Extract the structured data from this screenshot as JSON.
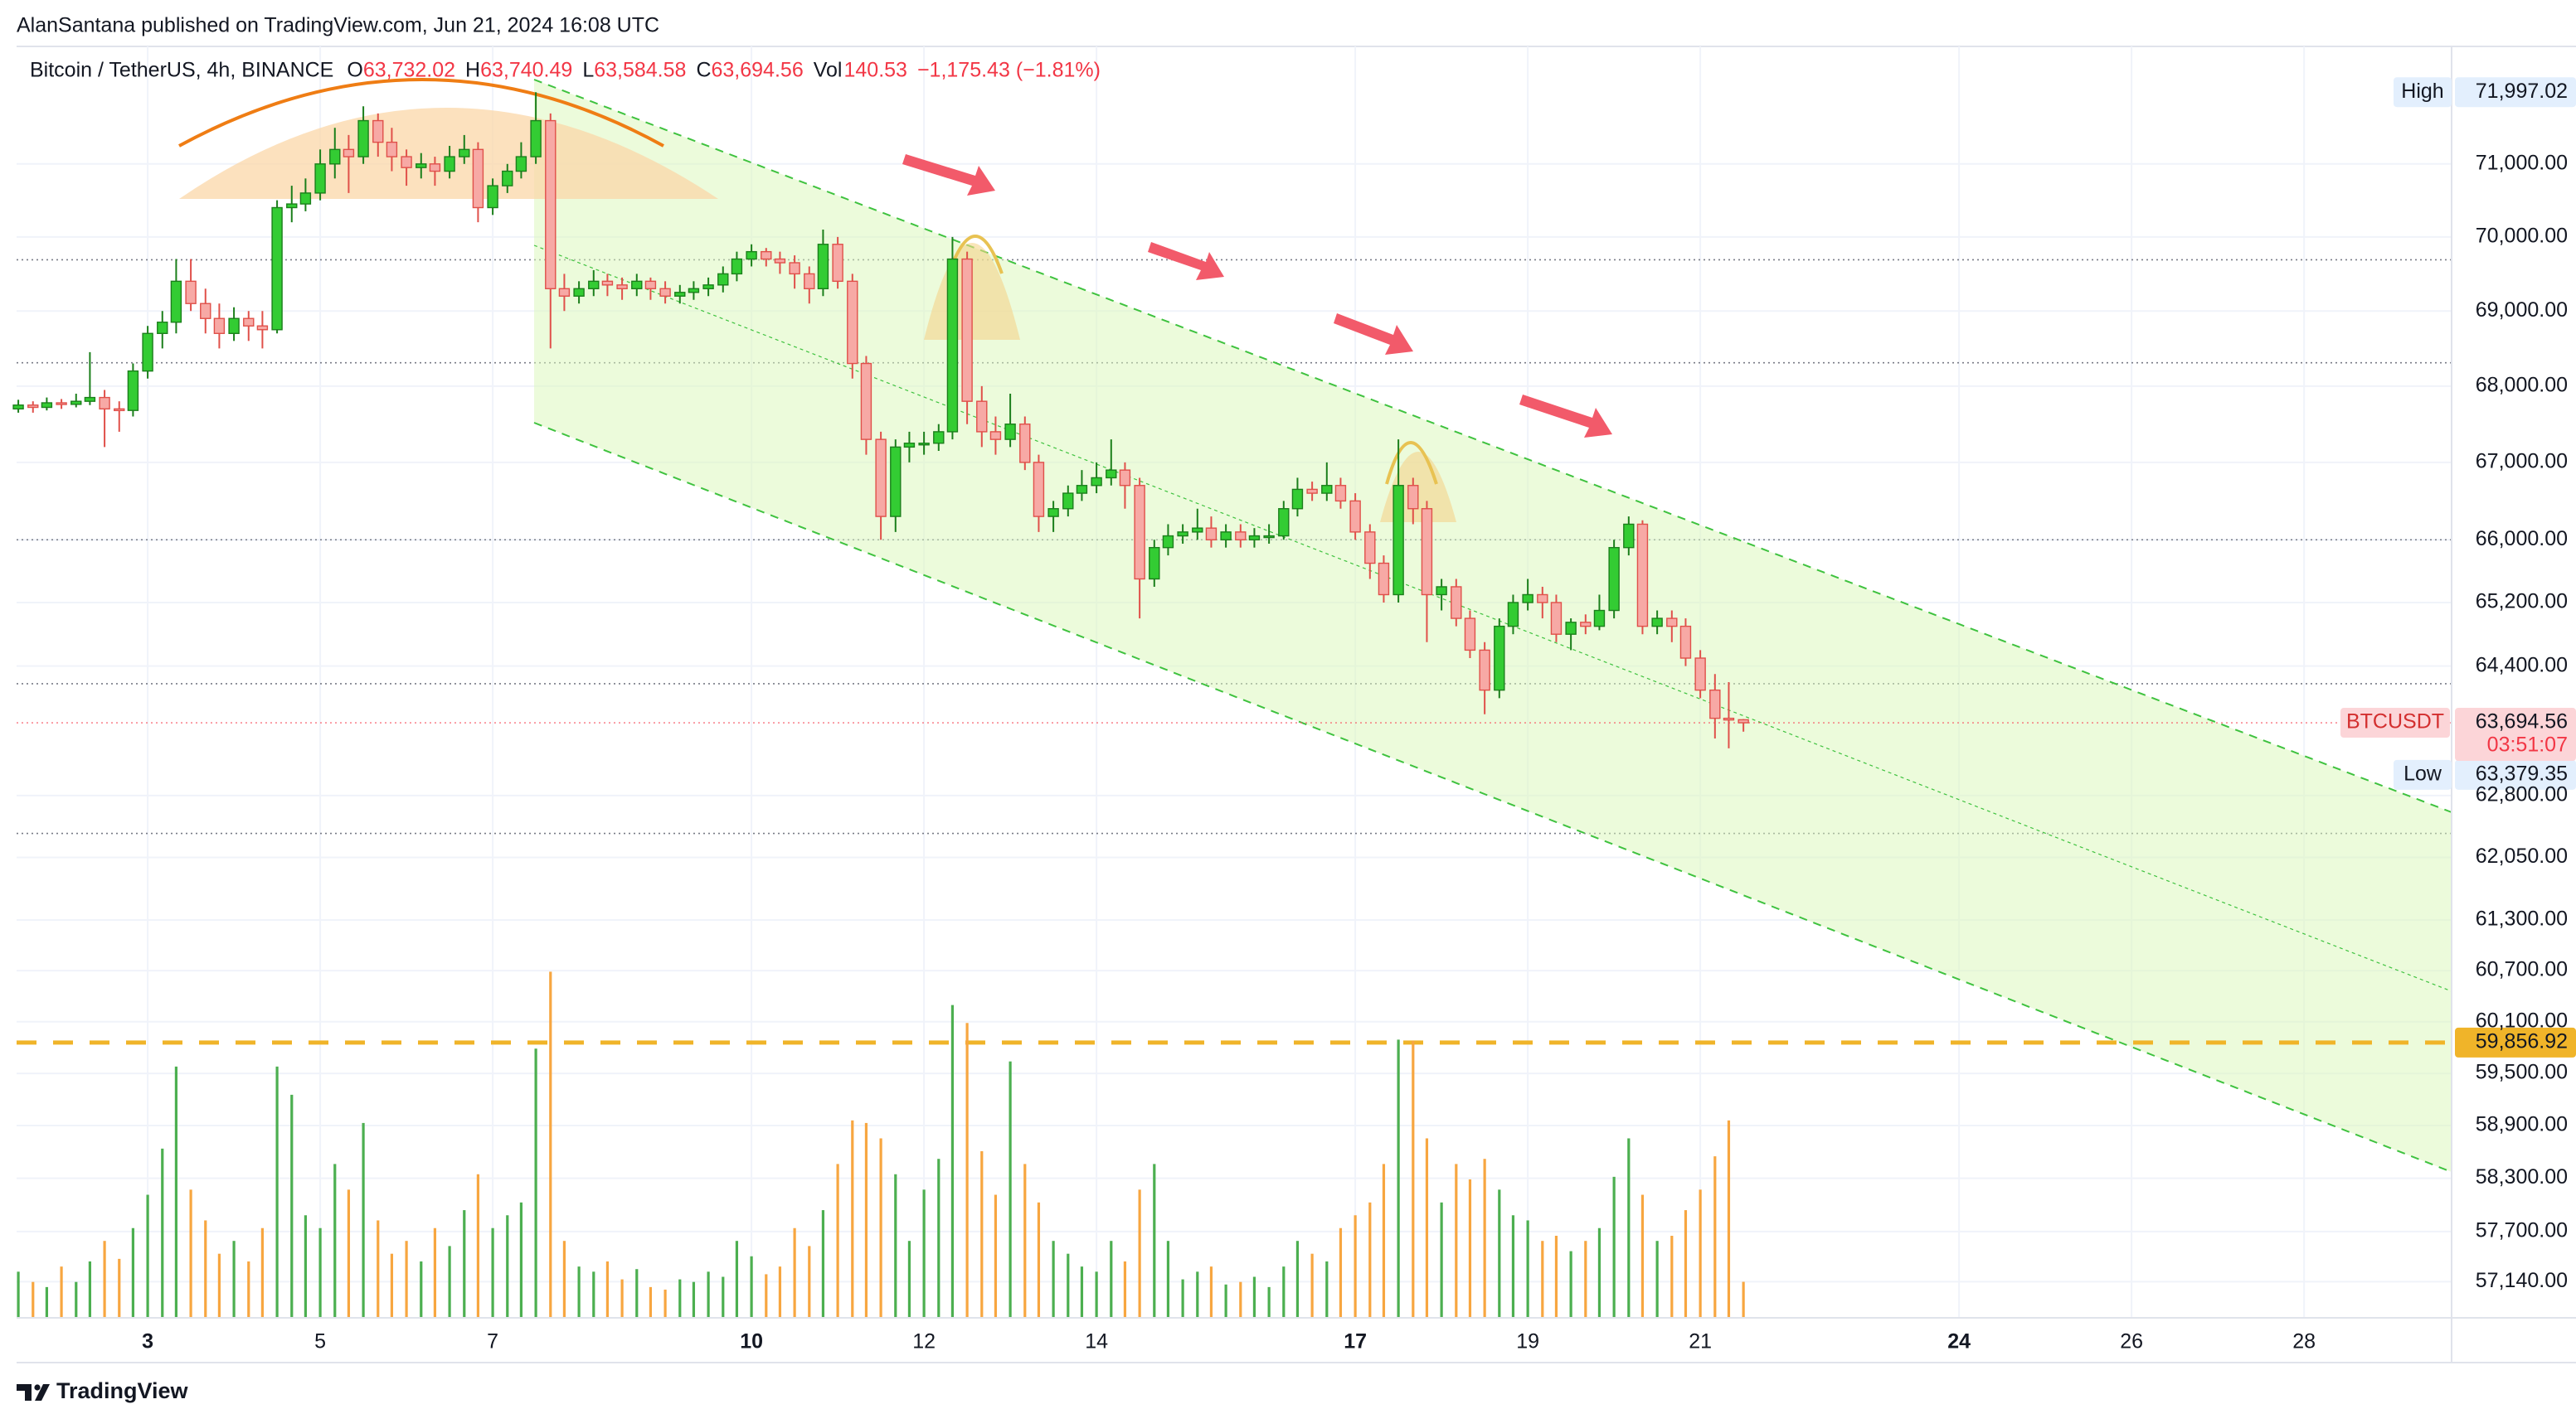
{
  "header": {
    "title": "AlanSantana published on TradingView.com, Jun 21, 2024 16:08 UTC"
  },
  "legend": {
    "symbol": "Bitcoin / TetherUS, 4h, BINANCE",
    "o_label": "O",
    "o": "63,732.02",
    "h_label": "H",
    "h": "63,740.49",
    "l_label": "L",
    "l": "63,584.58",
    "c_label": "C",
    "c": "63,694.56",
    "vol_label": "Vol",
    "vol": "140.53",
    "change": "−1,175.43 (−1.81%)"
  },
  "chart_data": {
    "type": "candlestick",
    "log_scale": true,
    "grid": true,
    "up_color": "#33cc33",
    "down_color": "#f7a9a5",
    "xlim": [
      1.48,
      29.71
    ],
    "xticks": [
      3,
      5,
      7,
      10,
      12,
      14,
      17,
      19,
      21,
      24,
      26,
      28
    ],
    "ylim": [
      56740,
      72640
    ],
    "yticks": [
      {
        "value": 71000,
        "label": "71,000.00"
      },
      {
        "value": 70000,
        "label": "70,000.00"
      },
      {
        "value": 69000,
        "label": "69,000.00"
      },
      {
        "value": 68000,
        "label": "68,000.00"
      },
      {
        "value": 67000,
        "label": "67,000.00"
      },
      {
        "value": 66000,
        "label": "66,000.00"
      },
      {
        "value": 65200,
        "label": "65,200.00"
      },
      {
        "value": 64400,
        "label": "64,400.00"
      },
      {
        "value": 62800,
        "label": "62,800.00"
      },
      {
        "value": 62050,
        "label": "62,050.00"
      },
      {
        "value": 61300,
        "label": "61,300.00"
      },
      {
        "value": 60700,
        "label": "60,700.00"
      },
      {
        "value": 60100,
        "label": "60,100.00"
      },
      {
        "value": 59500,
        "label": "59,500.00"
      },
      {
        "value": 58900,
        "label": "58,900.00"
      },
      {
        "value": 58300,
        "label": "58,300.00"
      },
      {
        "value": 57700,
        "label": "57,700.00"
      },
      {
        "value": 57140,
        "label": "57,140.00"
      }
    ],
    "volume_lim": [
      0,
      1500
    ],
    "x": [
      1.5,
      1.67,
      1.83,
      2,
      2.17,
      2.33,
      2.5,
      2.67,
      2.83,
      3,
      3.17,
      3.33,
      3.5,
      3.67,
      3.83,
      4,
      4.17,
      4.33,
      4.5,
      4.67,
      4.83,
      5,
      5.17,
      5.33,
      5.5,
      5.67,
      5.83,
      6,
      6.17,
      6.33,
      6.5,
      6.67,
      6.83,
      7,
      7.17,
      7.33,
      7.5,
      7.67,
      7.83,
      8,
      8.17,
      8.33,
      8.5,
      8.67,
      8.83,
      9,
      9.17,
      9.33,
      9.5,
      9.67,
      9.83,
      10,
      10.17,
      10.33,
      10.5,
      10.67,
      10.83,
      11,
      11.17,
      11.33,
      11.5,
      11.67,
      11.83,
      12,
      12.17,
      12.33,
      12.5,
      12.67,
      12.83,
      13,
      13.17,
      13.33,
      13.5,
      13.67,
      13.83,
      14,
      14.17,
      14.33,
      14.5,
      14.67,
      14.83,
      15,
      15.17,
      15.33,
      15.5,
      15.67,
      15.83,
      16,
      16.17,
      16.33,
      16.5,
      16.67,
      16.83,
      17,
      17.17,
      17.33,
      17.5,
      17.67,
      17.83,
      18,
      18.17,
      18.33,
      18.5,
      18.67,
      18.83,
      19,
      19.17,
      19.33,
      19.5,
      19.67,
      19.83,
      20,
      20.17,
      20.33,
      20.5,
      20.67,
      20.83,
      21,
      21.17,
      21.33,
      21.5
    ],
    "candles": [
      [
        67700,
        67820,
        67650,
        67750
      ],
      [
        67750,
        67800,
        67650,
        67720
      ],
      [
        67720,
        67850,
        67680,
        67780
      ],
      [
        67780,
        67830,
        67700,
        67760
      ],
      [
        67760,
        67900,
        67720,
        67800
      ],
      [
        67800,
        68450,
        67750,
        67850
      ],
      [
        67850,
        67950,
        67200,
        67700
      ],
      [
        67700,
        67800,
        67400,
        67680
      ],
      [
        67680,
        68300,
        67600,
        68200
      ],
      [
        68200,
        68800,
        68100,
        68700
      ],
      [
        68700,
        69000,
        68500,
        68850
      ],
      [
        68850,
        69700,
        68700,
        69400
      ],
      [
        69400,
        69700,
        69000,
        69100
      ],
      [
        69100,
        69300,
        68700,
        68900
      ],
      [
        68900,
        69100,
        68500,
        68700
      ],
      [
        68700,
        69050,
        68600,
        68900
      ],
      [
        68900,
        69000,
        68600,
        68800
      ],
      [
        68800,
        69000,
        68500,
        68750
      ],
      [
        68750,
        70500,
        68700,
        70400
      ],
      [
        70400,
        70700,
        70200,
        70450
      ],
      [
        70450,
        70800,
        70350,
        70600
      ],
      [
        70600,
        71200,
        70500,
        71000
      ],
      [
        71000,
        71500,
        70800,
        71200
      ],
      [
        71200,
        71400,
        70600,
        71100
      ],
      [
        71100,
        71800,
        71000,
        71600
      ],
      [
        71600,
        71700,
        71100,
        71300
      ],
      [
        71300,
        71500,
        70900,
        71100
      ],
      [
        71100,
        71200,
        70700,
        70950
      ],
      [
        70950,
        71150,
        70800,
        71000
      ],
      [
        71000,
        71100,
        70700,
        70900
      ],
      [
        70900,
        71250,
        70800,
        71100
      ],
      [
        71100,
        71400,
        71000,
        71200
      ],
      [
        71200,
        71300,
        70200,
        70400
      ],
      [
        70400,
        70800,
        70300,
        70700
      ],
      [
        70700,
        71000,
        70600,
        70900
      ],
      [
        70900,
        71300,
        70800,
        71100
      ],
      [
        71100,
        71997.02,
        71000,
        71600
      ],
      [
        71600,
        71700,
        68500,
        69300
      ],
      [
        69300,
        69500,
        69000,
        69200
      ],
      [
        69200,
        69400,
        69100,
        69300
      ],
      [
        69300,
        69550,
        69200,
        69400
      ],
      [
        69400,
        69500,
        69200,
        69350
      ],
      [
        69350,
        69450,
        69150,
        69300
      ],
      [
        69300,
        69500,
        69200,
        69400
      ],
      [
        69400,
        69450,
        69150,
        69300
      ],
      [
        69300,
        69400,
        69100,
        69200
      ],
      [
        69200,
        69350,
        69100,
        69250
      ],
      [
        69250,
        69400,
        69150,
        69300
      ],
      [
        69300,
        69450,
        69200,
        69350
      ],
      [
        69350,
        69600,
        69250,
        69500
      ],
      [
        69500,
        69800,
        69400,
        69700
      ],
      [
        69700,
        69900,
        69600,
        69800
      ],
      [
        69800,
        69850,
        69600,
        69700
      ],
      [
        69700,
        69800,
        69500,
        69650
      ],
      [
        69650,
        69750,
        69300,
        69500
      ],
      [
        69500,
        69600,
        69100,
        69300
      ],
      [
        69300,
        70100,
        69200,
        69900
      ],
      [
        69900,
        70000,
        69300,
        69400
      ],
      [
        69400,
        69500,
        68100,
        68300
      ],
      [
        68300,
        68400,
        67100,
        67300
      ],
      [
        67300,
        67400,
        66000,
        66300
      ],
      [
        66300,
        67300,
        66100,
        67200
      ],
      [
        67200,
        67400,
        67000,
        67250
      ],
      [
        67250,
        67400,
        67100,
        67250
      ],
      [
        67250,
        67500,
        67150,
        67400
      ],
      [
        67400,
        70000,
        67300,
        69700
      ],
      [
        69700,
        69800,
        67500,
        67800
      ],
      [
        67800,
        68000,
        67200,
        67400
      ],
      [
        67400,
        67600,
        67100,
        67300
      ],
      [
        67300,
        67900,
        67200,
        67500
      ],
      [
        67500,
        67600,
        66900,
        67000
      ],
      [
        67000,
        67100,
        66100,
        66300
      ],
      [
        66300,
        66500,
        66100,
        66400
      ],
      [
        66400,
        66700,
        66300,
        66600
      ],
      [
        66600,
        66900,
        66500,
        66700
      ],
      [
        66700,
        67000,
        66600,
        66800
      ],
      [
        66800,
        67300,
        66700,
        66900
      ],
      [
        66900,
        67000,
        66400,
        66700
      ],
      [
        66700,
        66800,
        65000,
        65500
      ],
      [
        65500,
        66000,
        65400,
        65900
      ],
      [
        65900,
        66200,
        65800,
        66050
      ],
      [
        66050,
        66200,
        65950,
        66100
      ],
      [
        66100,
        66400,
        66000,
        66150
      ],
      [
        66150,
        66300,
        65900,
        66000
      ],
      [
        66000,
        66200,
        65900,
        66100
      ],
      [
        66100,
        66200,
        65900,
        66000
      ],
      [
        66000,
        66150,
        65900,
        66050
      ],
      [
        66050,
        66200,
        65950,
        66050
      ],
      [
        66050,
        66500,
        66000,
        66400
      ],
      [
        66400,
        66800,
        66300,
        66650
      ],
      [
        66650,
        66750,
        66500,
        66600
      ],
      [
        66600,
        67000,
        66500,
        66700
      ],
      [
        66700,
        66800,
        66400,
        66500
      ],
      [
        66500,
        66600,
        66000,
        66100
      ],
      [
        66100,
        66200,
        65500,
        65700
      ],
      [
        65700,
        65800,
        65200,
        65300
      ],
      [
        65300,
        67300,
        65200,
        66700
      ],
      [
        66700,
        66800,
        66200,
        66400
      ],
      [
        66400,
        66500,
        64700,
        65300
      ],
      [
        65300,
        65500,
        65100,
        65400
      ],
      [
        65400,
        65500,
        64900,
        65000
      ],
      [
        65000,
        65100,
        64500,
        64600
      ],
      [
        64600,
        64700,
        63800,
        64100
      ],
      [
        64100,
        65000,
        64000,
        64900
      ],
      [
        64900,
        65300,
        64800,
        65200
      ],
      [
        65200,
        65500,
        65100,
        65300
      ],
      [
        65300,
        65400,
        65000,
        65200
      ],
      [
        65200,
        65300,
        64700,
        64800
      ],
      [
        64800,
        65000,
        64600,
        64950
      ],
      [
        64950,
        65050,
        64800,
        64900
      ],
      [
        64900,
        65300,
        64850,
        65100
      ],
      [
        65100,
        66000,
        65000,
        65900
      ],
      [
        65900,
        66300,
        65800,
        66200
      ],
      [
        66200,
        66250,
        64800,
        64900
      ],
      [
        64900,
        65100,
        64800,
        65000
      ],
      [
        65000,
        65100,
        64700,
        64900
      ],
      [
        64900,
        65000,
        64400,
        64500
      ],
      [
        64500,
        64600,
        64000,
        64100
      ],
      [
        64100,
        64300,
        63500,
        63750
      ],
      [
        63750,
        64200,
        63379.35,
        63732.02
      ],
      [
        63732.02,
        63740.49,
        63584.58,
        63694.56
      ]
    ],
    "volumes": [
      180,
      140,
      120,
      200,
      140,
      220,
      300,
      230,
      350,
      480,
      660,
      980,
      500,
      380,
      250,
      300,
      220,
      350,
      980,
      870,
      400,
      350,
      600,
      500,
      760,
      380,
      250,
      300,
      220,
      350,
      280,
      420,
      560,
      350,
      400,
      450,
      1050,
      1350,
      300,
      200,
      180,
      220,
      150,
      190,
      120,
      110,
      150,
      140,
      180,
      160,
      300,
      240,
      170,
      200,
      350,
      280,
      420,
      600,
      770,
      760,
      700,
      560,
      300,
      500,
      620,
      1220,
      1150,
      650,
      480,
      1000,
      600,
      450,
      300,
      250,
      200,
      180,
      300,
      220,
      500,
      600,
      300,
      150,
      180,
      200,
      130,
      140,
      160,
      120,
      200,
      300,
      250,
      220,
      350,
      400,
      450,
      600,
      1085,
      1080,
      700,
      450,
      600,
      540,
      620,
      500,
      400,
      380,
      300,
      320,
      260,
      300,
      350,
      550,
      700,
      480,
      300,
      320,
      420,
      500,
      630,
      770,
      140.53
    ],
    "levels": [
      69690,
      68310,
      66000,
      64180,
      62340
    ],
    "support": {
      "value": 59856.92,
      "label": "59,856.92",
      "color": "#f0b429"
    },
    "high_tag": {
      "name": "High",
      "value": 71997.02,
      "label": "71,997.02"
    },
    "low_tag": {
      "name": "Low",
      "value": 63379.35,
      "label": "63,379.35"
    },
    "last_price": {
      "symbol": "BTCUSDT",
      "value": 63694.56,
      "label": "63,694.56",
      "countdown": "03:51:07"
    }
  },
  "footer": "TradingView"
}
